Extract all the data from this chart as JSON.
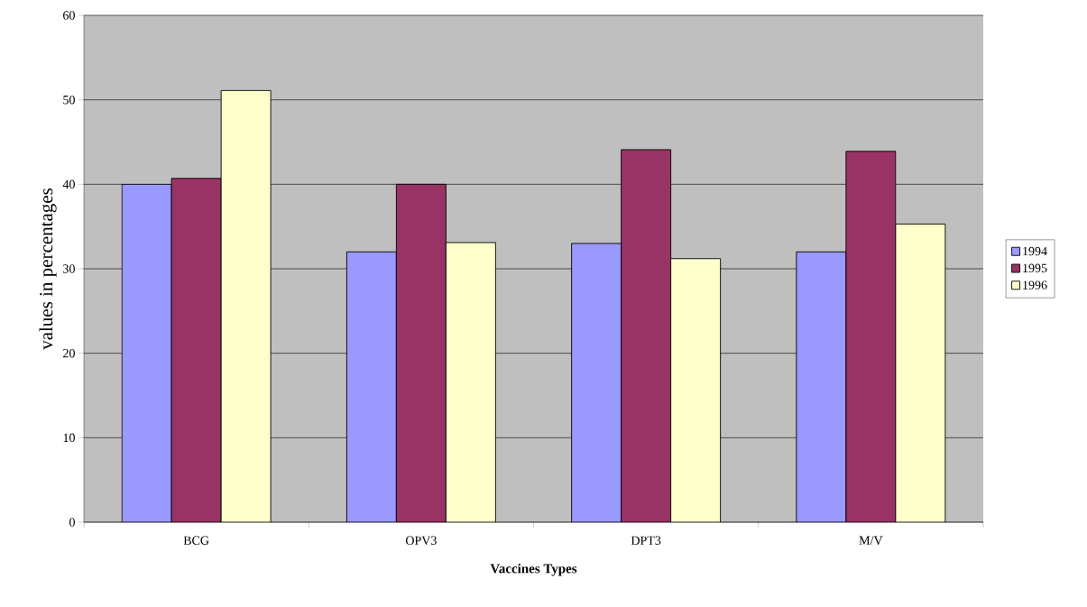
{
  "chart_data": {
    "type": "bar",
    "xlabel": "Vaccines Types",
    "ylabel": "values in percentages",
    "categories": [
      "BCG",
      "OPV3",
      "DPT3",
      "M/V"
    ],
    "series": [
      {
        "name": "1994",
        "color": "#9999ff",
        "values": [
          40,
          32,
          33,
          32
        ]
      },
      {
        "name": "1995",
        "color": "#993366",
        "values": [
          40.7,
          40,
          44.1,
          43.9
        ]
      },
      {
        "name": "1996",
        "color": "#ffffcc",
        "values": [
          51.1,
          33.1,
          31.2,
          35.3
        ]
      }
    ],
    "ylim": [
      0,
      60
    ],
    "yticks": [
      0,
      10,
      20,
      30,
      40,
      50,
      60
    ],
    "grid": "y",
    "legend": "right"
  }
}
